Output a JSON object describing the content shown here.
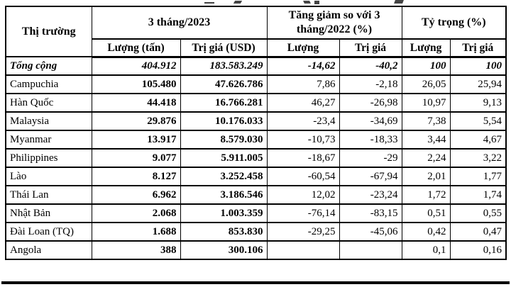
{
  "colors": {
    "background": "#ffffff",
    "border": "#000000",
    "text": "#000000"
  },
  "table": {
    "col_group_headers": [
      {
        "label": "Thị trường"
      },
      {
        "label": "3 tháng/2023"
      },
      {
        "label": "Tăng giảm so với 3 tháng/2022 (%)"
      },
      {
        "label": "Tỷ trọng (%)"
      }
    ],
    "sub_headers": [
      "Lượng (tấn)",
      "Trị giá (USD)",
      "Lượng",
      "Trị giá",
      "Lượng",
      "Trị giá"
    ],
    "total_row": {
      "label": "Tổng cộng",
      "values": [
        "404.912",
        "183.583.249",
        "-14,62",
        "-40,2",
        "100",
        "100"
      ]
    },
    "rows": [
      {
        "market": "Campuchia",
        "values": [
          "105.480",
          "47.626.786",
          "7,86",
          "-2,18",
          "26,05",
          "25,94"
        ]
      },
      {
        "market": "Hàn Quốc",
        "values": [
          "44.418",
          "16.766.281",
          "46,27",
          "-26,98",
          "10,97",
          "9,13"
        ]
      },
      {
        "market": "Malaysia",
        "values": [
          "29.876",
          "10.176.033",
          "-23,4",
          "-34,69",
          "7,38",
          "5,54"
        ]
      },
      {
        "market": "Myanmar",
        "values": [
          "13.917",
          "8.579.030",
          "-10,73",
          "-18,33",
          "3,44",
          "4,67"
        ]
      },
      {
        "market": "Philippines",
        "values": [
          "9.077",
          "5.911.005",
          "-18,67",
          "-29",
          "2,24",
          "3,22"
        ]
      },
      {
        "market": "Lào",
        "values": [
          "8.127",
          "3.252.458",
          "-60,54",
          "-67,94",
          "2,01",
          "1,77"
        ]
      },
      {
        "market": "Thái Lan",
        "values": [
          "6.962",
          "3.186.546",
          "12,02",
          "-23,24",
          "1,72",
          "1,74"
        ]
      },
      {
        "market": "Nhật Bản",
        "values": [
          "2.068",
          "1.003.359",
          "-76,14",
          "-83,15",
          "0,51",
          "0,55"
        ]
      },
      {
        "market": "Đài Loan (TQ)",
        "values": [
          "1.688",
          "853.830",
          "-29,25",
          "-45,06",
          "0,42",
          "0,47"
        ]
      },
      {
        "market": "Angola",
        "values": [
          "388",
          "300.106",
          "",
          "",
          "0,1",
          "0,16"
        ]
      }
    ]
  }
}
